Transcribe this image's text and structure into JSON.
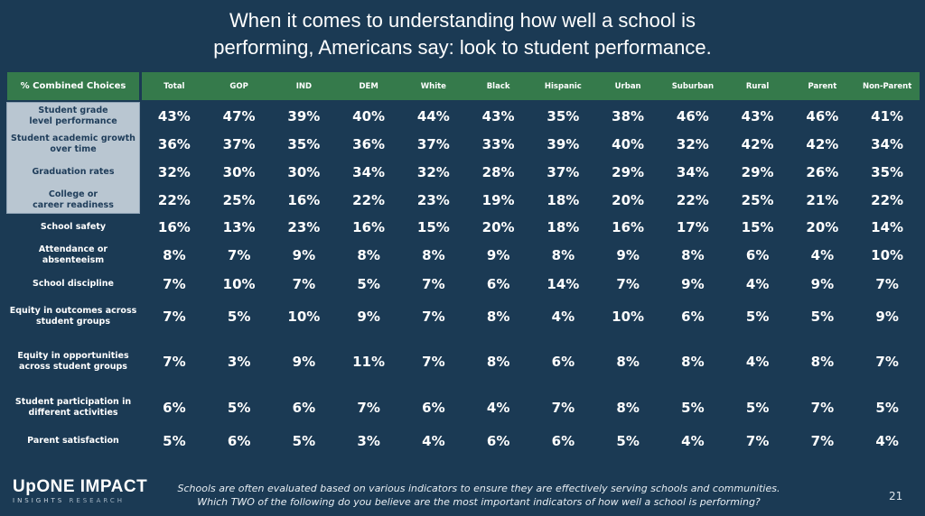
{
  "title_lines": [
    "When it comes to understanding how well a school is",
    "performing, Americans say: look to student performance."
  ],
  "colors": {
    "background": "#1b3a54",
    "header": "#357a4b",
    "highlight": "#b9c6d1"
  },
  "chart_data": {
    "type": "table",
    "row_header": "% Combined Choices",
    "columns": [
      "Total",
      "GOP",
      "IND",
      "DEM",
      "White",
      "Black",
      "Hispanic",
      "Urban",
      "Suburban",
      "Rural",
      "Parent",
      "Non-Parent"
    ],
    "rows": [
      {
        "label": [
          "Student grade",
          "level performance"
        ],
        "highlighted": true,
        "values": [
          "43%",
          "47%",
          "39%",
          "40%",
          "44%",
          "43%",
          "35%",
          "38%",
          "46%",
          "43%",
          "46%",
          "41%"
        ]
      },
      {
        "label": [
          "Student academic growth",
          "over time"
        ],
        "highlighted": true,
        "values": [
          "36%",
          "37%",
          "35%",
          "36%",
          "37%",
          "33%",
          "39%",
          "40%",
          "32%",
          "42%",
          "42%",
          "34%"
        ]
      },
      {
        "label": [
          "Graduation rates"
        ],
        "highlighted": true,
        "values": [
          "32%",
          "30%",
          "30%",
          "34%",
          "32%",
          "28%",
          "37%",
          "29%",
          "34%",
          "29%",
          "26%",
          "35%"
        ]
      },
      {
        "label": [
          "College or",
          "career readiness"
        ],
        "highlighted": true,
        "values": [
          "22%",
          "25%",
          "16%",
          "22%",
          "23%",
          "19%",
          "18%",
          "20%",
          "22%",
          "25%",
          "21%",
          "22%"
        ]
      },
      {
        "label": [
          "School safety"
        ],
        "highlighted": false,
        "values": [
          "16%",
          "13%",
          "23%",
          "16%",
          "15%",
          "20%",
          "18%",
          "16%",
          "17%",
          "15%",
          "20%",
          "14%"
        ]
      },
      {
        "label": [
          "Attendance or absenteeism"
        ],
        "highlighted": false,
        "values": [
          "8%",
          "7%",
          "9%",
          "8%",
          "8%",
          "9%",
          "8%",
          "9%",
          "8%",
          "6%",
          "4%",
          "10%"
        ]
      },
      {
        "label": [
          "School discipline"
        ],
        "highlighted": false,
        "values": [
          "7%",
          "10%",
          "7%",
          "5%",
          "7%",
          "6%",
          "14%",
          "7%",
          "9%",
          "4%",
          "9%",
          "7%"
        ]
      },
      {
        "label": [
          "Equity in outcomes across",
          "student groups"
        ],
        "highlighted": false,
        "values": [
          "7%",
          "5%",
          "10%",
          "9%",
          "7%",
          "8%",
          "4%",
          "10%",
          "6%",
          "5%",
          "5%",
          "9%"
        ]
      },
      {
        "label": [
          "Equity in opportunities",
          "across student groups"
        ],
        "highlighted": false,
        "values": [
          "7%",
          "3%",
          "9%",
          "11%",
          "7%",
          "8%",
          "6%",
          "8%",
          "8%",
          "4%",
          "8%",
          "7%"
        ]
      },
      {
        "label": [
          "Student participation in",
          "different activities"
        ],
        "highlighted": false,
        "values": [
          "6%",
          "5%",
          "6%",
          "7%",
          "6%",
          "4%",
          "7%",
          "8%",
          "5%",
          "5%",
          "7%",
          "5%"
        ]
      },
      {
        "label": [
          "Parent satisfaction"
        ],
        "highlighted": false,
        "values": [
          "5%",
          "6%",
          "5%",
          "3%",
          "4%",
          "6%",
          "6%",
          "5%",
          "4%",
          "7%",
          "7%",
          "4%"
        ]
      }
    ]
  },
  "footer": {
    "question_lines": [
      "Schools are often evaluated based on various indicators to ensure they are effectively serving schools and communities.",
      "Which TWO of the following do you believe are the most important indicators of how well a school is performing?"
    ],
    "page_number": "21"
  },
  "logo": {
    "line1": "UpONE IMPACT",
    "line2a": "INSIGHTS",
    "line2b": "RESEARCH"
  }
}
